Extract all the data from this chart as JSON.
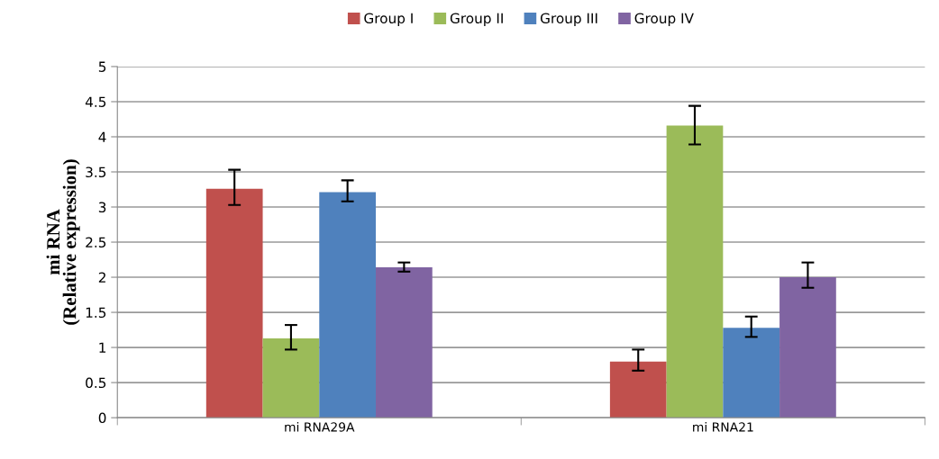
{
  "chart_data": {
    "type": "bar",
    "ylabel": "mi RNA\n(Relative expression)",
    "categories": [
      "mi RNA29A",
      "mi RNA21"
    ],
    "series": [
      {
        "name": "Group I",
        "color": "#c0504d",
        "values": [
          3.26,
          0.8
        ],
        "errors": [
          [
            3.03,
            3.53
          ],
          [
            0.67,
            0.97
          ]
        ]
      },
      {
        "name": "Group II",
        "color": "#9bbb59",
        "values": [
          1.13,
          4.16
        ],
        "errors": [
          [
            0.97,
            1.32
          ],
          [
            3.89,
            4.44
          ]
        ]
      },
      {
        "name": "Group III",
        "color": "#4f81bd",
        "values": [
          3.21,
          1.28
        ],
        "errors": [
          [
            3.08,
            3.38
          ],
          [
            1.15,
            1.44
          ]
        ]
      },
      {
        "name": "Group IV",
        "color": "#8064a2",
        "values": [
          2.14,
          2.0
        ],
        "errors": [
          [
            2.08,
            2.21
          ],
          [
            1.85,
            2.21
          ]
        ]
      }
    ],
    "ylim": [
      0,
      5
    ],
    "yticks": [
      0,
      0.5,
      1,
      1.5,
      2,
      2.5,
      3,
      3.5,
      4,
      4.5,
      5
    ],
    "grid": "y",
    "legend": "top"
  }
}
